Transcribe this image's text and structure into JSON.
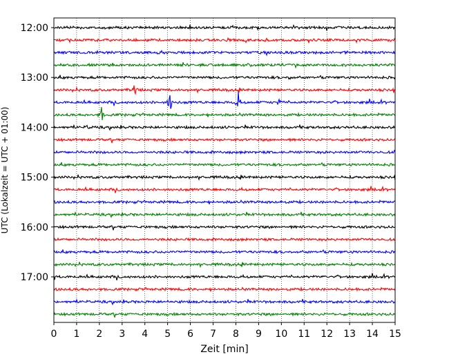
{
  "chart_data": {
    "type": "line",
    "chart_kind": "helicorder",
    "title": "",
    "xlabel": "Zeit  [min]",
    "ylabel": "UTC (Lokalzeit = UTC + 01:00)",
    "xlim": [
      0,
      15
    ],
    "x_ticks": [
      "0",
      "1",
      "2",
      "3",
      "4",
      "5",
      "6",
      "7",
      "8",
      "9",
      "10",
      "11",
      "12",
      "13",
      "14",
      "15"
    ],
    "y_tick_labels": [
      "12:00",
      "13:00",
      "14:00",
      "15:00",
      "16:00",
      "17:00"
    ],
    "row_interval_min": 15,
    "grid": {
      "vertical_dotted": true
    },
    "trace_colors": [
      "#000000",
      "#ff0000",
      "#0000ff",
      "#008000"
    ],
    "rows": [
      {
        "start": "12:00",
        "color": "#000000"
      },
      {
        "start": "12:15",
        "color": "#ff0000"
      },
      {
        "start": "12:30",
        "color": "#0000ff"
      },
      {
        "start": "12:45",
        "color": "#008000"
      },
      {
        "start": "13:00",
        "color": "#000000"
      },
      {
        "start": "13:15",
        "color": "#ff0000"
      },
      {
        "start": "13:30",
        "color": "#0000ff"
      },
      {
        "start": "13:45",
        "color": "#008000"
      },
      {
        "start": "14:00",
        "color": "#000000"
      },
      {
        "start": "14:15",
        "color": "#ff0000"
      },
      {
        "start": "14:30",
        "color": "#0000ff"
      },
      {
        "start": "14:45",
        "color": "#008000"
      },
      {
        "start": "15:00",
        "color": "#000000"
      },
      {
        "start": "15:15",
        "color": "#ff0000"
      },
      {
        "start": "15:30",
        "color": "#0000ff"
      },
      {
        "start": "15:45",
        "color": "#008000"
      },
      {
        "start": "16:00",
        "color": "#000000"
      },
      {
        "start": "16:15",
        "color": "#ff0000"
      },
      {
        "start": "16:30",
        "color": "#0000ff"
      },
      {
        "start": "16:45",
        "color": "#008000"
      },
      {
        "start": "17:00",
        "color": "#000000"
      },
      {
        "start": "17:15",
        "color": "#ff0000"
      },
      {
        "start": "17:30",
        "color": "#0000ff"
      },
      {
        "start": "17:45",
        "color": "#008000"
      }
    ],
    "events": [
      {
        "row": 5,
        "minute": 3.55,
        "amplitude": 2.4
      },
      {
        "row": 6,
        "minute": 5.1,
        "amplitude": 3.2
      },
      {
        "row": 6,
        "minute": 8.1,
        "amplitude": 2.6
      },
      {
        "row": 6,
        "minute": 9.9,
        "amplitude": 1.2
      },
      {
        "row": 7,
        "minute": 2.1,
        "amplitude": 1.6
      },
      {
        "row": 8,
        "minute": 1.5,
        "amplitude": 0.5
      },
      {
        "row": 4,
        "minute": 10.4,
        "amplitude": 0.6
      },
      {
        "row": 14,
        "minute": 10.0,
        "amplitude": 0.4
      }
    ]
  }
}
